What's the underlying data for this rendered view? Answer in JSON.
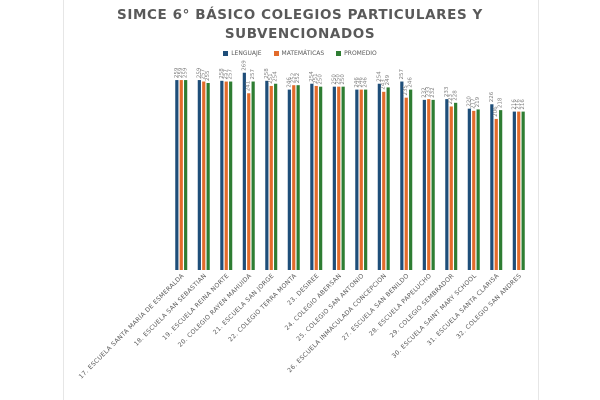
{
  "chart_data": {
    "type": "bar",
    "title": "SIMCE 6° BÁSICO COLEGIOS PARTICULARES Y SUBVENCIONADOS",
    "xlabel": "",
    "ylabel": "",
    "ylim": [
      0,
      270
    ],
    "grid": false,
    "legend_position": "top",
    "categories": [
      "17. ESCUELA SANTA MARÍA DE ESMERALDA",
      "18. ESCUELA SAN SEBASTIAN",
      "19. ESCUELA REINA NORTE",
      "20. COLEGIO RAYEN MAHUIDA",
      "21. ESCUELA SAN JORGE",
      "22. COLEGIO TERRA MONTA",
      "23. DESIREE",
      "24. COLEGIO ABERSAN",
      "25. COLEGIO SAN ANTONIO",
      "26. ESCUELA INMACULADA CONCEPCION",
      "27. ESCUELA SAN BENILDO",
      "28. ESCUELA PAPELUCHO",
      "29. COLEGIO SEMBRADOR",
      "30. ESCUELA SAINT MARY SCHOOL",
      "31. ESCUELA SANTA CLARISA",
      "32. COLEGIO SAN ANDRES"
    ],
    "series": [
      {
        "name": "LENGUAJE",
        "color": "#1f4e79",
        "values": [
          259,
          259,
          258,
          269,
          258,
          246,
          254,
          250,
          246,
          254,
          257,
          232,
          233,
          220,
          226,
          216
        ]
      },
      {
        "name": "MATEMÁTICAS",
        "color": "#e26b2b",
        "values": [
          259,
          257,
          257,
          241,
          251,
          252,
          251,
          250,
          246,
          243,
          235,
          233,
          223,
          217,
          206,
          216
        ]
      },
      {
        "name": "PROMEDIO",
        "color": "#2e7d32",
        "values": [
          259,
          255,
          257,
          257,
          254,
          252,
          250,
          250,
          246,
          249,
          246,
          232,
          228,
          219,
          218,
          216
        ]
      }
    ]
  }
}
